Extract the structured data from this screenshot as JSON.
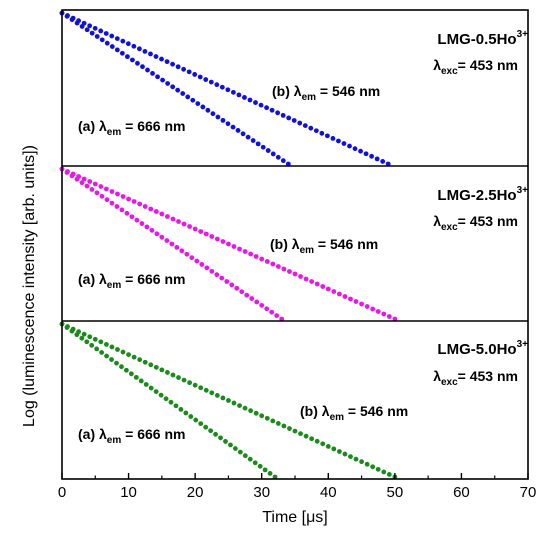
{
  "chart_data": {
    "type": "scatter",
    "xlabel": "Time [μs]",
    "ylabel": "Log (luminescence intensity [arb. units])",
    "xlim": [
      0,
      70
    ],
    "x_ticks": [
      "0",
      "10",
      "20",
      "30",
      "40",
      "50",
      "60",
      "70"
    ],
    "grid": false,
    "panels": [
      {
        "sample_label": {
          "main": "LMG-0.5Ho",
          "sup": "3+"
        },
        "exc_label": {
          "lambda": "λ",
          "sub": "exc",
          "rest": "= 453 nm"
        },
        "color": "#1010dd",
        "series": [
          {
            "name": "(a) λem = 666 nm",
            "label_prefix": "(a) λ",
            "label_sub": "em",
            "label_rest": " = 666 nm",
            "x_start": 0,
            "x_end": 34,
            "y_start": 1.0,
            "y_end": 0.0
          },
          {
            "name": "(b) λem = 546 nm",
            "label_prefix": "(b) λ",
            "label_sub": "em",
            "label_rest": " = 546 nm",
            "x_start": 0,
            "x_end": 49,
            "y_start": 1.0,
            "y_end": 0.0
          }
        ]
      },
      {
        "sample_label": {
          "main": "LMG-2.5Ho",
          "sup": "3+"
        },
        "exc_label": {
          "lambda": "λ",
          "sub": "exc",
          "rest": "= 453 nm"
        },
        "color": "#e817e8",
        "series": [
          {
            "name": "(a) λem = 666 nm",
            "label_prefix": "(a) λ",
            "label_sub": "em",
            "label_rest": " = 666 nm",
            "x_start": 0,
            "x_end": 33,
            "y_start": 1.0,
            "y_end": 0.0
          },
          {
            "name": "(b) λem = 546 nm",
            "label_prefix": "(b) λ",
            "label_sub": "em",
            "label_rest": " = 546 nm",
            "x_start": 0,
            "x_end": 50,
            "y_start": 1.0,
            "y_end": 0.0
          }
        ]
      },
      {
        "sample_label": {
          "main": "LMG-5.0Ho",
          "sup": "3+"
        },
        "exc_label": {
          "lambda": "λ",
          "sub": "exc",
          "rest": "= 453 nm"
        },
        "color": "#1a8a1a",
        "series": [
          {
            "name": "(a) λem = 666 nm",
            "label_prefix": "(a) λ",
            "label_sub": "em",
            "label_rest": " = 666 nm",
            "x_start": 0,
            "x_end": 32,
            "y_start": 1.0,
            "y_end": 0.0
          },
          {
            "name": "(b) λem = 546 nm",
            "label_prefix": "(b) λ",
            "label_sub": "em",
            "label_rest": " = 546 nm",
            "x_start": 0,
            "x_end": 50,
            "y_start": 1.0,
            "y_end": 0.0
          }
        ]
      }
    ]
  }
}
